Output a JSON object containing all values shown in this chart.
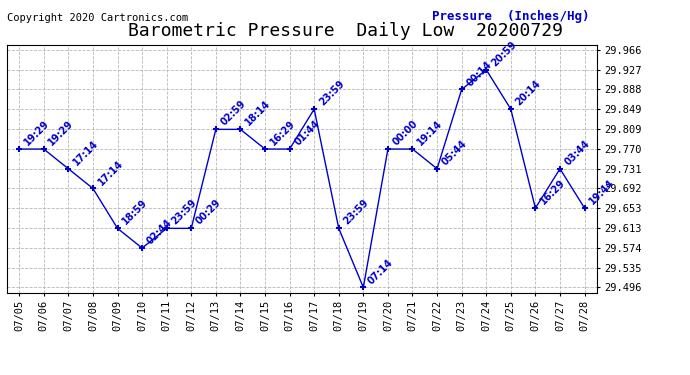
{
  "title": "Barometric Pressure  Daily Low  20200729",
  "ylabel": "Pressure  (Inches/Hg)",
  "copyright": "Copyright 2020 Cartronics.com",
  "line_color": "#0000cc",
  "label_color": "#0000cc",
  "bg_color": "#ffffff",
  "grid_color": "#b0b0b0",
  "x_labels": [
    "07/05",
    "07/06",
    "07/07",
    "07/08",
    "07/09",
    "07/10",
    "07/11",
    "07/12",
    "07/13",
    "07/14",
    "07/15",
    "07/16",
    "07/17",
    "07/18",
    "07/19",
    "07/20",
    "07/21",
    "07/22",
    "07/23",
    "07/24",
    "07/25",
    "07/26",
    "07/27",
    "07/28"
  ],
  "point_labels": [
    "19:29",
    "19:29",
    "17:14",
    "17:14",
    "18:59",
    "02:44",
    "23:59",
    "00:29",
    "02:59",
    "18:14",
    "16:29",
    "01:44",
    "23:59",
    "23:59",
    "07:14",
    "00:00",
    "19:14",
    "05:44",
    "00:14",
    "20:59",
    "20:14",
    "16:29",
    "03:44",
    "19:44"
  ],
  "y_values": [
    29.77,
    29.77,
    29.731,
    29.692,
    29.613,
    29.574,
    29.613,
    29.613,
    29.809,
    29.809,
    29.77,
    29.77,
    29.849,
    29.613,
    29.496,
    29.77,
    29.77,
    29.731,
    29.888,
    29.927,
    29.849,
    29.653,
    29.731,
    29.653
  ],
  "ylim_min": 29.486,
  "ylim_max": 29.976,
  "yticks": [
    29.966,
    29.927,
    29.888,
    29.849,
    29.809,
    29.77,
    29.731,
    29.692,
    29.653,
    29.613,
    29.574,
    29.535,
    29.496
  ],
  "title_fontsize": 13,
  "axis_fontsize": 7.5,
  "point_label_fontsize": 7,
  "copyright_fontsize": 7.5,
  "ylabel_fontsize": 9
}
